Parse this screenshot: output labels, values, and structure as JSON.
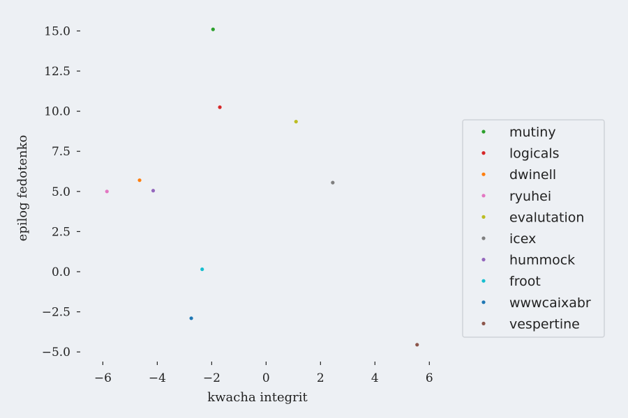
{
  "chart_data": {
    "type": "scatter",
    "title": "",
    "xlabel": "kwacha integrit",
    "ylabel": "epilog fedotenko",
    "xlim": [
      -6.6,
      6.3
    ],
    "ylim": [
      -5.6,
      15.8
    ],
    "xticks": [
      -6,
      -4,
      -2,
      0,
      2,
      4,
      6
    ],
    "xtick_labels": [
      "−6",
      "−4",
      "−2",
      "0",
      "2",
      "4",
      "6"
    ],
    "yticks": [
      -5,
      -2.5,
      0,
      2.5,
      5,
      7.5,
      10,
      12.5,
      15
    ],
    "ytick_labels": [
      "−5.0",
      "−2.5",
      "0.0",
      "2.5",
      "5.0",
      "7.5",
      "10.0",
      "12.5",
      "15.0"
    ],
    "grid": false,
    "legend_position": "center-right",
    "series": [
      {
        "name": "mutiny",
        "color": "#2ca02c",
        "points": [
          [
            -1.95,
            15.1
          ]
        ]
      },
      {
        "name": "logicals",
        "color": "#d62728",
        "points": [
          [
            -1.7,
            10.25
          ]
        ]
      },
      {
        "name": "dwinell",
        "color": "#ff7f0e",
        "points": [
          [
            -4.65,
            5.7
          ]
        ]
      },
      {
        "name": "ryuhei",
        "color": "#e377c2",
        "points": [
          [
            -5.85,
            5.0
          ]
        ]
      },
      {
        "name": "evalutation",
        "color": "#bcbd22",
        "points": [
          [
            1.1,
            9.35
          ]
        ]
      },
      {
        "name": "icex",
        "color": "#7f7f7f",
        "points": [
          [
            2.45,
            5.55
          ]
        ]
      },
      {
        "name": "hummock",
        "color": "#9467bd",
        "points": [
          [
            -4.15,
            5.05
          ]
        ]
      },
      {
        "name": "froot",
        "color": "#17becf",
        "points": [
          [
            -2.35,
            0.15
          ]
        ]
      },
      {
        "name": "wwwcaixabr",
        "color": "#1f77b4",
        "points": [
          [
            -2.75,
            -2.9
          ]
        ]
      },
      {
        "name": "vespertine",
        "color": "#8c564b",
        "points": [
          [
            5.55,
            -4.55
          ]
        ]
      }
    ]
  }
}
